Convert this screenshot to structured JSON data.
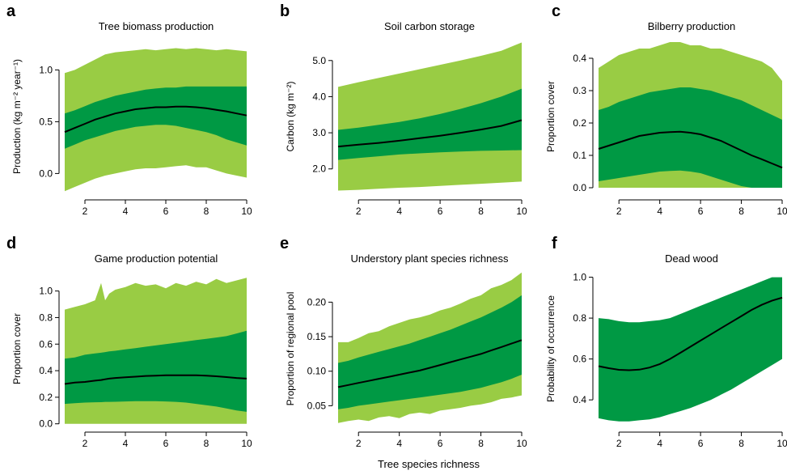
{
  "figure": {
    "xlabel": "Tree species richness"
  },
  "colors": {
    "outer_band": "#99cc44",
    "inner_band": "#009944",
    "line": "#000000"
  },
  "chart_data": [
    {
      "panel": "a",
      "type": "area",
      "title": "Tree biomass production",
      "ylabel": "Production (kg m⁻² year⁻¹)",
      "xlim": [
        1,
        10
      ],
      "ylim": [
        -0.2,
        1.3
      ],
      "xticks": [
        "2",
        "4",
        "6",
        "8",
        "10"
      ],
      "yticks": [
        "0.0",
        "0.5",
        "1.0"
      ],
      "x": [
        1,
        1.5,
        2,
        2.5,
        3,
        3.5,
        4,
        4.5,
        5,
        5.5,
        6,
        6.5,
        7,
        7.5,
        8,
        8.5,
        9,
        9.5,
        10
      ],
      "outer_low": [
        -0.17,
        -0.13,
        -0.09,
        -0.05,
        -0.02,
        0.0,
        0.02,
        0.04,
        0.05,
        0.05,
        0.06,
        0.07,
        0.08,
        0.06,
        0.06,
        0.03,
        0.0,
        -0.02,
        -0.04
      ],
      "outer_high": [
        0.97,
        1.0,
        1.05,
        1.1,
        1.15,
        1.17,
        1.18,
        1.19,
        1.2,
        1.19,
        1.2,
        1.21,
        1.2,
        1.21,
        1.2,
        1.19,
        1.2,
        1.19,
        1.18
      ],
      "inner_low": [
        0.24,
        0.28,
        0.32,
        0.35,
        0.38,
        0.41,
        0.43,
        0.45,
        0.46,
        0.47,
        0.47,
        0.46,
        0.44,
        0.42,
        0.4,
        0.37,
        0.33,
        0.3,
        0.27
      ],
      "inner_high": [
        0.58,
        0.61,
        0.65,
        0.69,
        0.72,
        0.75,
        0.77,
        0.79,
        0.81,
        0.82,
        0.83,
        0.83,
        0.84,
        0.84,
        0.84,
        0.84,
        0.84,
        0.84,
        0.84
      ],
      "mean": [
        0.4,
        0.44,
        0.48,
        0.52,
        0.55,
        0.58,
        0.6,
        0.62,
        0.63,
        0.64,
        0.64,
        0.645,
        0.645,
        0.64,
        0.63,
        0.615,
        0.6,
        0.58,
        0.56
      ]
    },
    {
      "panel": "b",
      "type": "area",
      "title": "Soil carbon storage",
      "ylabel": "Carbon (kg m⁻²)",
      "xlim": [
        1,
        10
      ],
      "ylim": [
        1.3,
        5.6
      ],
      "xticks": [
        "2",
        "4",
        "6",
        "8",
        "10"
      ],
      "yticks": [
        "2.0",
        "3.0",
        "4.0",
        "5.0"
      ],
      "x": [
        1,
        2,
        3,
        4,
        5,
        6,
        7,
        8,
        9,
        10
      ],
      "outer_low": [
        1.4,
        1.42,
        1.45,
        1.48,
        1.5,
        1.53,
        1.56,
        1.59,
        1.62,
        1.65
      ],
      "outer_high": [
        4.27,
        4.4,
        4.52,
        4.64,
        4.76,
        4.88,
        5.0,
        5.13,
        5.27,
        5.5
      ],
      "inner_low": [
        2.25,
        2.3,
        2.35,
        2.4,
        2.43,
        2.46,
        2.48,
        2.5,
        2.51,
        2.52
      ],
      "inner_high": [
        3.08,
        3.14,
        3.22,
        3.3,
        3.4,
        3.52,
        3.66,
        3.82,
        4.0,
        4.22
      ],
      "mean": [
        2.62,
        2.67,
        2.72,
        2.78,
        2.85,
        2.92,
        3.0,
        3.09,
        3.19,
        3.35
      ]
    },
    {
      "panel": "c",
      "type": "area",
      "title": "Bilberry production",
      "ylabel": "Proportion cover",
      "xlim": [
        1,
        10
      ],
      "ylim": [
        -0.02,
        0.46
      ],
      "xticks": [
        "2",
        "4",
        "6",
        "8",
        "10"
      ],
      "yticks": [
        "0.0",
        "0.1",
        "0.2",
        "0.3",
        "0.4"
      ],
      "x": [
        1,
        1.5,
        2,
        2.5,
        3,
        3.5,
        4,
        4.5,
        5,
        5.5,
        6,
        6.5,
        7,
        7.5,
        8,
        8.5,
        9,
        9.5,
        10
      ],
      "outer_low": [
        0.0,
        0.0,
        0.0,
        0.0,
        0.0,
        0.0,
        0.0,
        0.0,
        0.0,
        0.0,
        0.0,
        0.0,
        0.0,
        0.0,
        0.0,
        0.0,
        0.0,
        0.0,
        0.0
      ],
      "outer_high": [
        0.37,
        0.39,
        0.41,
        0.42,
        0.43,
        0.43,
        0.44,
        0.45,
        0.45,
        0.44,
        0.44,
        0.43,
        0.43,
        0.42,
        0.41,
        0.4,
        0.39,
        0.37,
        0.33
      ],
      "inner_low": [
        0.02,
        0.025,
        0.03,
        0.035,
        0.04,
        0.045,
        0.05,
        0.052,
        0.053,
        0.05,
        0.045,
        0.035,
        0.025,
        0.015,
        0.005,
        0.0,
        0.0,
        0.0,
        0.0
      ],
      "inner_high": [
        0.24,
        0.25,
        0.265,
        0.275,
        0.285,
        0.295,
        0.3,
        0.305,
        0.31,
        0.31,
        0.305,
        0.3,
        0.29,
        0.28,
        0.27,
        0.255,
        0.24,
        0.225,
        0.21
      ],
      "mean": [
        0.12,
        0.13,
        0.14,
        0.15,
        0.16,
        0.165,
        0.17,
        0.172,
        0.173,
        0.17,
        0.165,
        0.155,
        0.145,
        0.13,
        0.115,
        0.1,
        0.088,
        0.075,
        0.062
      ]
    },
    {
      "panel": "d",
      "type": "area",
      "title": "Game production potential",
      "ylabel": "Proportion cover",
      "xlim": [
        1,
        10
      ],
      "ylim": [
        -0.02,
        1.15
      ],
      "xticks": [
        "2",
        "4",
        "6",
        "8",
        "10"
      ],
      "yticks": [
        "0.0",
        "0.2",
        "0.4",
        "0.6",
        "0.8",
        "1.0"
      ],
      "x": [
        1,
        1.5,
        2,
        2.5,
        2.8,
        3,
        3.2,
        3.5,
        4,
        4.5,
        5,
        5.5,
        6,
        6.5,
        7,
        7.5,
        8,
        8.5,
        9,
        9.5,
        10
      ],
      "outer_low": [
        0.0,
        0.0,
        0.0,
        0.0,
        0.0,
        0.0,
        0.0,
        0.0,
        0.0,
        0.0,
        0.0,
        0.0,
        0.0,
        0.0,
        0.0,
        0.0,
        0.0,
        0.0,
        0.0,
        0.0,
        0.0
      ],
      "outer_high": [
        0.86,
        0.88,
        0.9,
        0.93,
        1.06,
        0.93,
        0.98,
        1.01,
        1.03,
        1.06,
        1.04,
        1.05,
        1.02,
        1.06,
        1.04,
        1.07,
        1.05,
        1.09,
        1.06,
        1.08,
        1.1
      ],
      "inner_low": [
        0.15,
        0.155,
        0.16,
        0.162,
        0.163,
        0.165,
        0.165,
        0.166,
        0.168,
        0.17,
        0.17,
        0.17,
        0.168,
        0.165,
        0.16,
        0.15,
        0.14,
        0.13,
        0.115,
        0.1,
        0.09
      ],
      "inner_high": [
        0.49,
        0.5,
        0.52,
        0.53,
        0.535,
        0.54,
        0.545,
        0.55,
        0.56,
        0.57,
        0.58,
        0.59,
        0.6,
        0.61,
        0.62,
        0.63,
        0.64,
        0.65,
        0.66,
        0.68,
        0.7
      ],
      "mean": [
        0.3,
        0.31,
        0.315,
        0.325,
        0.33,
        0.335,
        0.34,
        0.345,
        0.35,
        0.355,
        0.36,
        0.362,
        0.365,
        0.366,
        0.366,
        0.365,
        0.362,
        0.358,
        0.352,
        0.345,
        0.34
      ]
    },
    {
      "panel": "e",
      "type": "area",
      "title": "Understory plant species richness",
      "ylabel": "Proportion of regional pool",
      "xlim": [
        1,
        10
      ],
      "ylim": [
        0.02,
        0.245
      ],
      "xticks": [
        "2",
        "4",
        "6",
        "8",
        "10"
      ],
      "yticks": [
        "0.05",
        "0.10",
        "0.15",
        "0.20"
      ],
      "x": [
        1,
        1.5,
        2,
        2.5,
        3,
        3.5,
        4,
        4.5,
        5,
        5.5,
        6,
        6.5,
        7,
        7.5,
        8,
        8.5,
        9,
        9.5,
        10
      ],
      "outer_low": [
        0.025,
        0.028,
        0.03,
        0.028,
        0.033,
        0.035,
        0.032,
        0.038,
        0.04,
        0.038,
        0.043,
        0.045,
        0.047,
        0.05,
        0.052,
        0.055,
        0.06,
        0.062,
        0.065
      ],
      "outer_high": [
        0.142,
        0.142,
        0.148,
        0.155,
        0.158,
        0.165,
        0.17,
        0.175,
        0.178,
        0.182,
        0.188,
        0.192,
        0.198,
        0.205,
        0.21,
        0.22,
        0.225,
        0.232,
        0.243
      ],
      "inner_low": [
        0.045,
        0.047,
        0.05,
        0.052,
        0.054,
        0.056,
        0.058,
        0.06,
        0.062,
        0.064,
        0.066,
        0.068,
        0.07,
        0.073,
        0.076,
        0.08,
        0.084,
        0.089,
        0.095
      ],
      "inner_high": [
        0.112,
        0.115,
        0.12,
        0.124,
        0.128,
        0.132,
        0.136,
        0.14,
        0.145,
        0.15,
        0.155,
        0.16,
        0.166,
        0.172,
        0.178,
        0.185,
        0.192,
        0.2,
        0.21
      ],
      "mean": [
        0.077,
        0.08,
        0.083,
        0.086,
        0.089,
        0.092,
        0.095,
        0.098,
        0.101,
        0.105,
        0.109,
        0.113,
        0.117,
        0.121,
        0.125,
        0.13,
        0.135,
        0.14,
        0.145
      ]
    },
    {
      "panel": "f",
      "type": "area",
      "title": "Dead wood",
      "ylabel": "Probability of occurrence",
      "xlim": [
        1,
        10
      ],
      "ylim": [
        0.27,
        1.03
      ],
      "xticks": [
        "2",
        "4",
        "6",
        "8",
        "10"
      ],
      "yticks": [
        "0.4",
        "0.6",
        "0.8",
        "1.0"
      ],
      "x": [
        1,
        1.5,
        2,
        2.5,
        3,
        3.5,
        4,
        4.5,
        5,
        5.5,
        6,
        6.5,
        7,
        7.5,
        8,
        8.5,
        9,
        9.5,
        10
      ],
      "inner_low": [
        0.31,
        0.3,
        0.295,
        0.295,
        0.3,
        0.305,
        0.315,
        0.33,
        0.345,
        0.36,
        0.38,
        0.4,
        0.425,
        0.45,
        0.48,
        0.51,
        0.54,
        0.57,
        0.6
      ],
      "inner_high": [
        0.8,
        0.795,
        0.785,
        0.78,
        0.78,
        0.785,
        0.79,
        0.8,
        0.82,
        0.84,
        0.86,
        0.88,
        0.9,
        0.92,
        0.94,
        0.96,
        0.98,
        1.0,
        1.0
      ],
      "mean": [
        0.565,
        0.555,
        0.547,
        0.545,
        0.548,
        0.558,
        0.575,
        0.6,
        0.63,
        0.66,
        0.69,
        0.72,
        0.75,
        0.78,
        0.81,
        0.84,
        0.865,
        0.885,
        0.9
      ]
    }
  ]
}
